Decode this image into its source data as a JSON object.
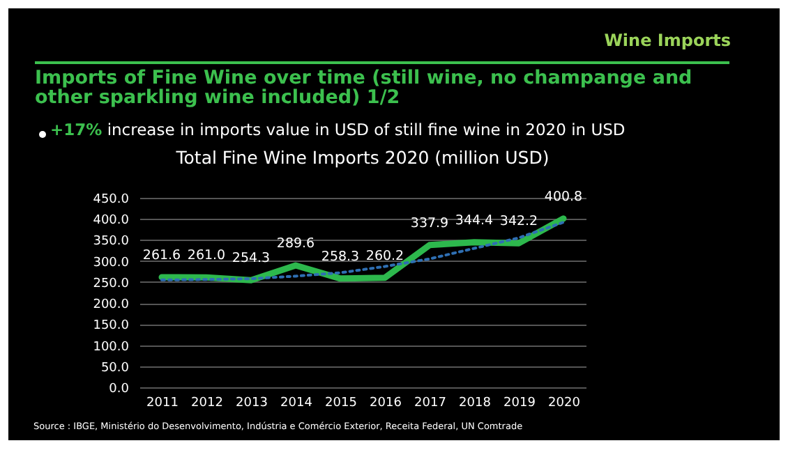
{
  "chart_data": {
    "type": "line",
    "title": "Total Fine Wine Imports 2020  (million USD)",
    "annotations": [
      "Wine Imports",
      "Imports of Fine Wine over time (still wine, no champange and other sparkling wine included) 1/2",
      "+17% increase in imports value in USD of still fine wine in 2020 in USD",
      "Source : IBGE, Ministério do Desenvolvimento, Indústria e Comércio Exterior, Receita Federal, UN Comtrade"
    ],
    "categories": [
      "2011",
      "2012",
      "2013",
      "2014",
      "2015",
      "2016",
      "2017",
      "2018",
      "2019",
      "2020"
    ],
    "series": [
      {
        "color": "#2db84d",
        "values": [
          261.6,
          261.0,
          254.3,
          289.6,
          258.3,
          260.2,
          337.9,
          344.4,
          342.2,
          400.8
        ],
        "value_labels": [
          "261.6",
          "261.0",
          "254.3",
          "289.6",
          "258.3",
          "260.2",
          "337.9",
          "344.4",
          "342.2",
          "400.8"
        ]
      },
      {
        "type": "line",
        "color": "#2f6fb3",
        "line_style": "dotted",
        "values": [
          255,
          256,
          258,
          264,
          272,
          287,
          305,
          330,
          355,
          392
        ]
      }
    ],
    "ylim": [
      0,
      450
    ],
    "yticks": [
      {
        "value": 0,
        "label": "0.0"
      },
      {
        "value": 50,
        "label": "50.0"
      },
      {
        "value": 100,
        "label": "100.0"
      },
      {
        "value": 150,
        "label": "150.0"
      },
      {
        "value": 200,
        "label": "200.0"
      },
      {
        "value": 250,
        "label": "250.0"
      },
      {
        "value": 300,
        "label": "300.0"
      },
      {
        "value": 350,
        "label": "350.0"
      },
      {
        "value": 400,
        "label": "400.0"
      },
      {
        "value": 450,
        "label": "450.0"
      }
    ],
    "grid": "y",
    "marker": "none",
    "line_style": "solid"
  }
}
